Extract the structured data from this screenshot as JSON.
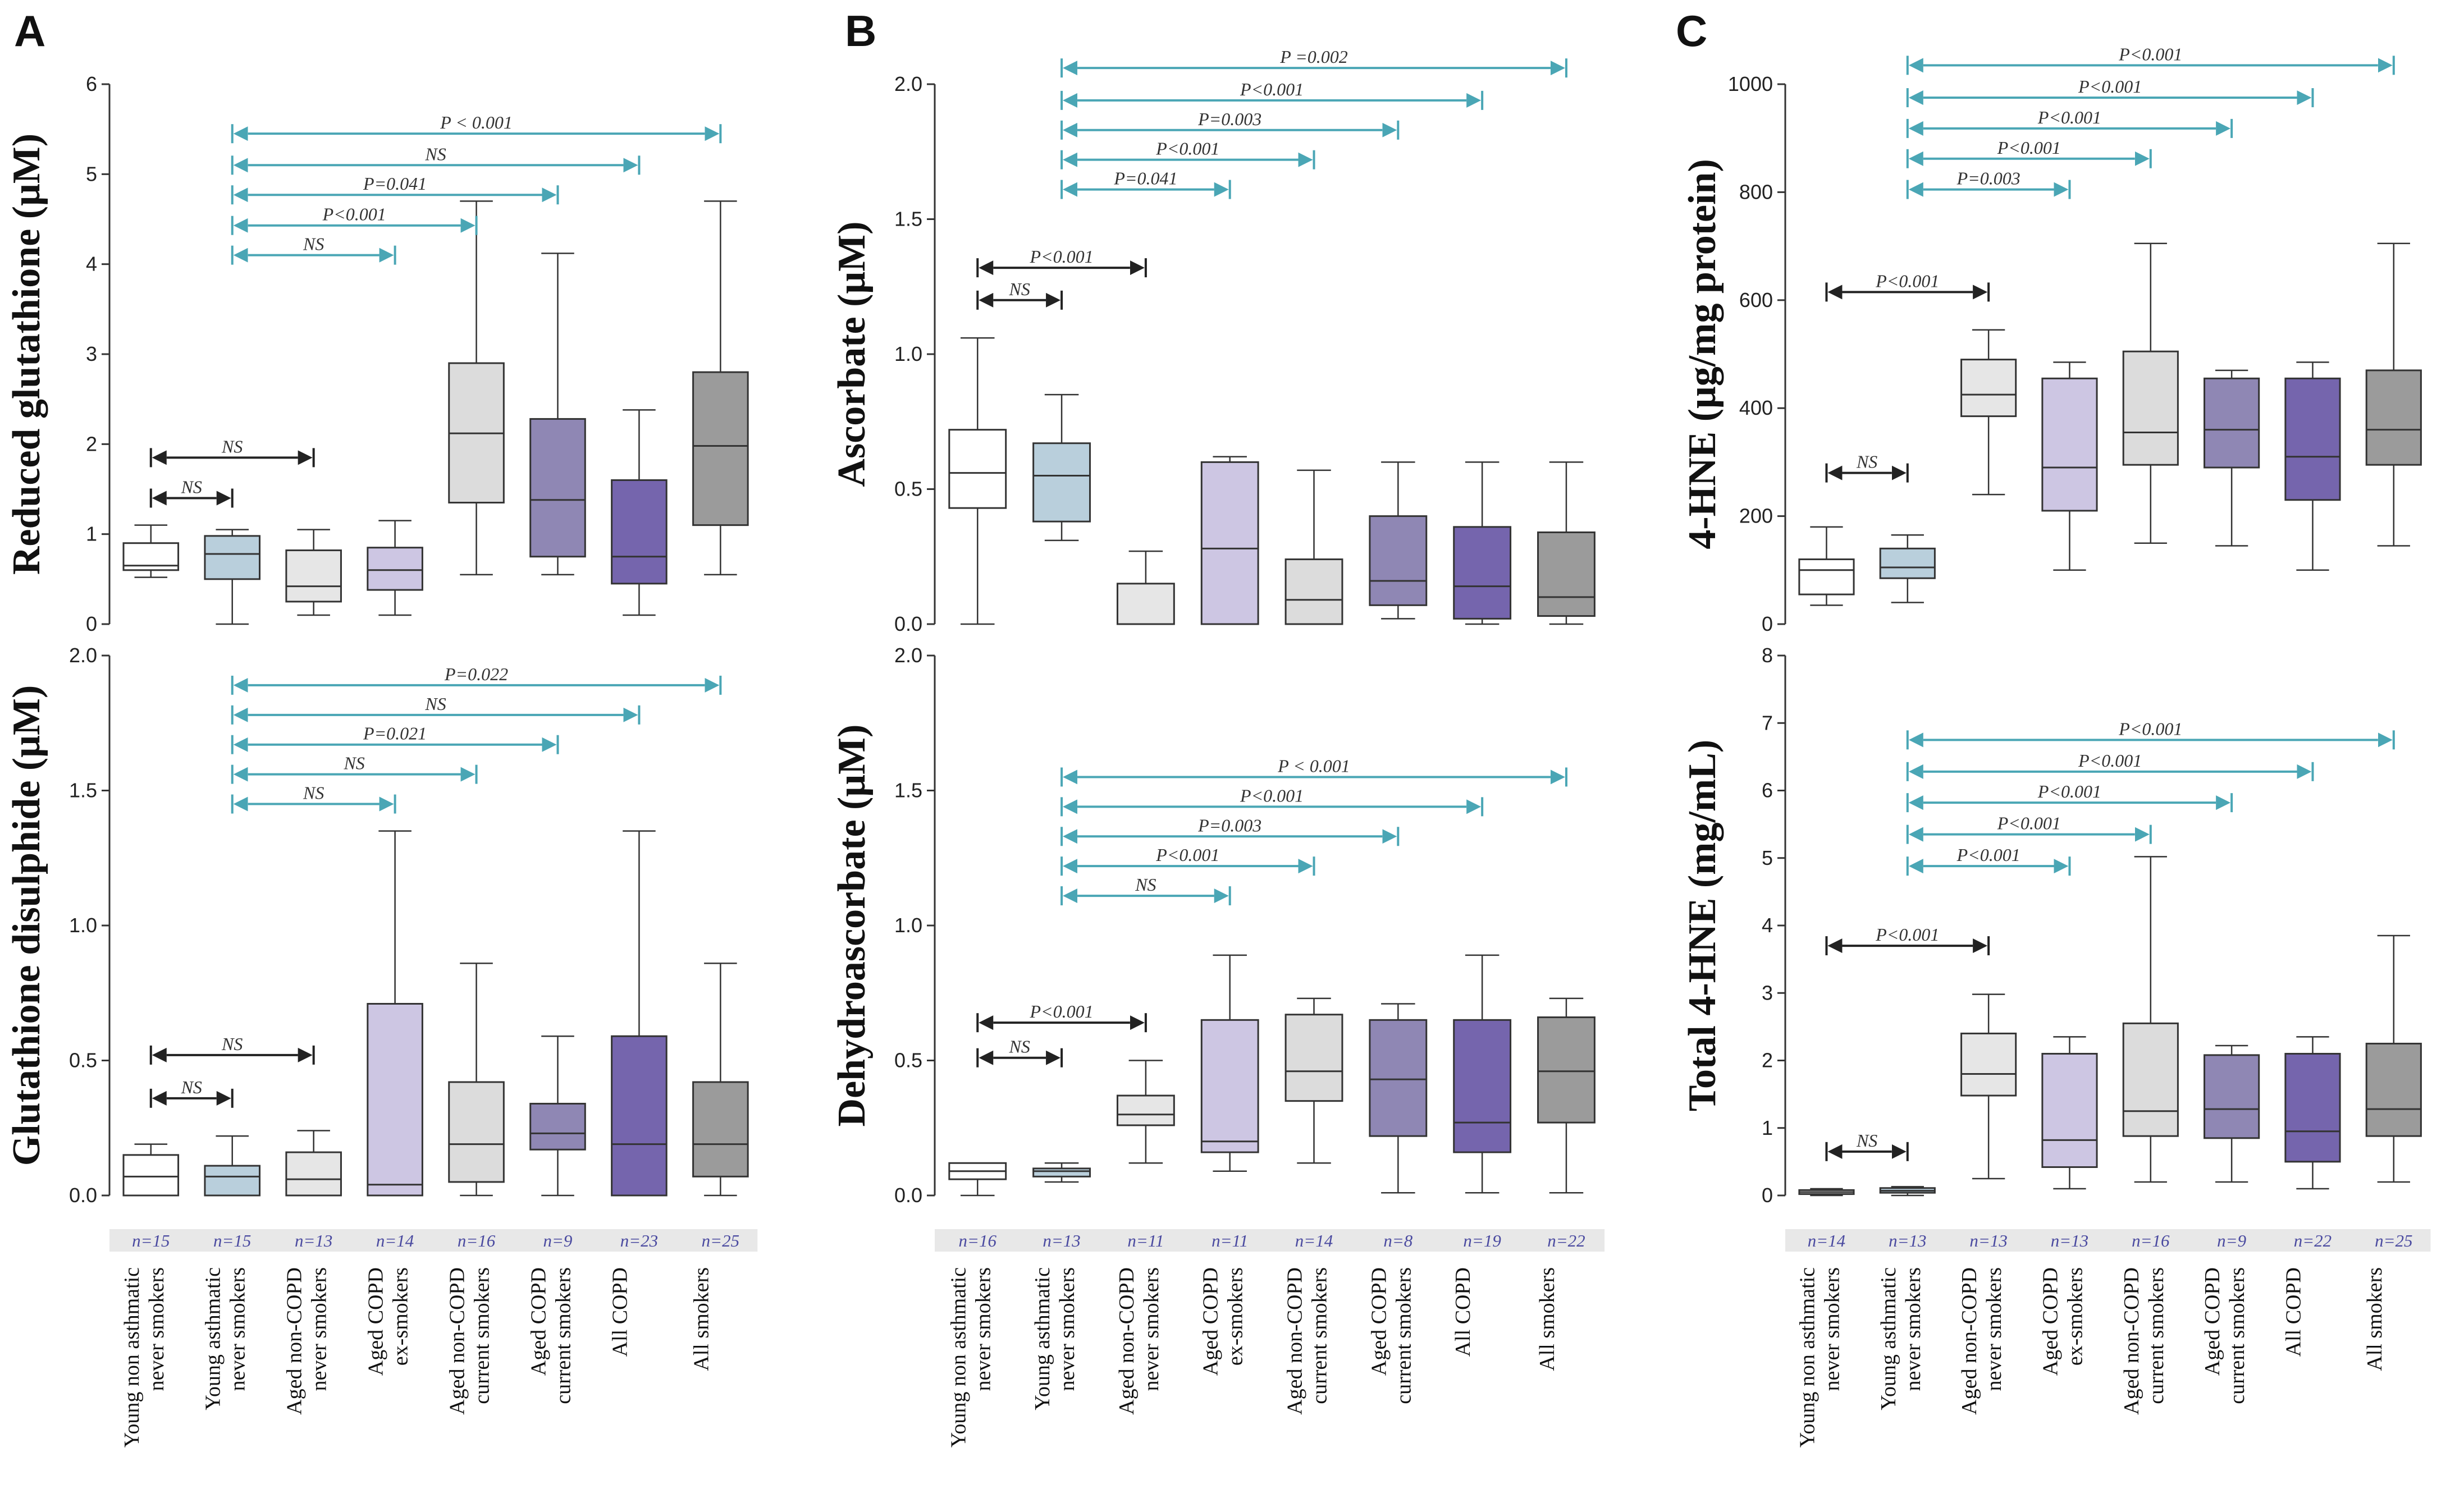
{
  "colors": {
    "teal": "#4aa6b5",
    "black": "#222222",
    "groups": [
      "#ffffff",
      "#b9cfdc",
      "#e6e6e6",
      "#cdc6e3",
      "#dcdcdc",
      "#8f87b4",
      "#7565ad",
      "#9b9b9b"
    ],
    "nband": "#e8e8e8"
  },
  "categories": [
    [
      "Young non asthmatic",
      "never smokers"
    ],
    [
      "Young asthmatic",
      "never smokers"
    ],
    [
      "Aged non-COPD",
      "never smokers"
    ],
    [
      "Aged COPD",
      "ex-smokers"
    ],
    [
      "Aged non-COPD",
      "current smokers"
    ],
    [
      "Aged COPD",
      "current smokers"
    ],
    [
      "All COPD"
    ],
    [
      "All smokers"
    ]
  ],
  "panels": [
    {
      "letter": "A",
      "n": [
        "n=15",
        "n=15",
        "n=13",
        "n=14",
        "n=16",
        "n=9",
        "n=23",
        "n=25"
      ]
    },
    {
      "letter": "B",
      "n": [
        "n=16",
        "n=13",
        "n=11",
        "n=11",
        "n=14",
        "n=8",
        "n=19",
        "n=22"
      ]
    },
    {
      "letter": "C",
      "n": [
        "n=14",
        "n=13",
        "n=13",
        "n=13",
        "n=16",
        "n=9",
        "n=22",
        "n=25"
      ]
    }
  ],
  "chart_data": [
    {
      "type": "box",
      "panel": "A",
      "row": "top",
      "ylabel": "Reduced glutathione (μM)",
      "ylim": [
        0,
        6
      ],
      "ticks": [
        "0",
        "1",
        "2",
        "3",
        "4",
        "5",
        "6"
      ],
      "tickvals": [
        0,
        1,
        2,
        3,
        4,
        5,
        6
      ],
      "boxes": [
        {
          "min": 0.52,
          "q1": 0.6,
          "median": 0.65,
          "q3": 0.9,
          "max": 1.1
        },
        {
          "min": 0.0,
          "q1": 0.5,
          "median": 0.78,
          "q3": 0.98,
          "max": 1.05
        },
        {
          "min": 0.1,
          "q1": 0.25,
          "median": 0.42,
          "q3": 0.82,
          "max": 1.05
        },
        {
          "min": 0.1,
          "q1": 0.38,
          "median": 0.6,
          "q3": 0.85,
          "max": 1.15
        },
        {
          "min": 0.55,
          "q1": 1.35,
          "median": 2.12,
          "q3": 2.9,
          "max": 4.7
        },
        {
          "min": 0.55,
          "q1": 0.75,
          "median": 1.38,
          "q3": 2.28,
          "max": 4.12
        },
        {
          "min": 0.1,
          "q1": 0.45,
          "median": 0.75,
          "q3": 1.6,
          "max": 2.38
        },
        {
          "min": 0.55,
          "q1": 1.1,
          "median": 1.98,
          "q3": 2.8,
          "max": 4.7
        }
      ],
      "comparisons": [
        {
          "from": 0,
          "to": 2,
          "y": 1.85,
          "label": "NS",
          "color": "black"
        },
        {
          "from": 0,
          "to": 1,
          "y": 1.4,
          "label": "NS",
          "color": "black"
        },
        {
          "from": 1,
          "to": 7,
          "y": 5.45,
          "label": "P < 0.001",
          "color": "teal"
        },
        {
          "from": 1,
          "to": 6,
          "y": 5.1,
          "label": "NS",
          "color": "teal"
        },
        {
          "from": 1,
          "to": 5,
          "y": 4.77,
          "label": "P=0.041",
          "color": "teal"
        },
        {
          "from": 1,
          "to": 4,
          "y": 4.43,
          "label": "P<0.001",
          "color": "teal"
        },
        {
          "from": 1,
          "to": 3,
          "y": 4.1,
          "label": "NS",
          "color": "teal"
        }
      ]
    },
    {
      "type": "box",
      "panel": "A",
      "row": "bottom",
      "ylabel": "Glutathione disulphide (μM)",
      "ylim": [
        0,
        2
      ],
      "ticks": [
        "0.0",
        "0.5",
        "1.0",
        "1.5",
        "2.0"
      ],
      "tickvals": [
        0,
        0.5,
        1.0,
        1.5,
        2.0
      ],
      "boxes": [
        {
          "min": 0.0,
          "q1": 0.0,
          "median": 0.07,
          "q3": 0.15,
          "max": 0.19
        },
        {
          "min": 0.0,
          "q1": 0.0,
          "median": 0.07,
          "q3": 0.11,
          "max": 0.22
        },
        {
          "min": 0.0,
          "q1": 0.0,
          "median": 0.06,
          "q3": 0.16,
          "max": 0.24
        },
        {
          "min": 0.0,
          "q1": 0.0,
          "median": 0.04,
          "q3": 0.71,
          "max": 1.35
        },
        {
          "min": 0.0,
          "q1": 0.05,
          "median": 0.19,
          "q3": 0.42,
          "max": 0.86
        },
        {
          "min": 0.0,
          "q1": 0.17,
          "median": 0.23,
          "q3": 0.34,
          "max": 0.59
        },
        {
          "min": 0.0,
          "q1": 0.0,
          "median": 0.19,
          "q3": 0.59,
          "max": 1.35
        },
        {
          "min": 0.0,
          "q1": 0.07,
          "median": 0.19,
          "q3": 0.42,
          "max": 0.86
        }
      ],
      "comparisons": [
        {
          "from": 0,
          "to": 2,
          "y": 0.52,
          "label": "NS",
          "color": "black"
        },
        {
          "from": 0,
          "to": 1,
          "y": 0.36,
          "label": "NS",
          "color": "black"
        },
        {
          "from": 1,
          "to": 7,
          "y": 1.89,
          "label": "P=0.022",
          "color": "teal"
        },
        {
          "from": 1,
          "to": 6,
          "y": 1.78,
          "label": "NS",
          "color": "teal"
        },
        {
          "from": 1,
          "to": 5,
          "y": 1.67,
          "label": "P=0.021",
          "color": "teal"
        },
        {
          "from": 1,
          "to": 4,
          "y": 1.56,
          "label": "NS",
          "color": "teal"
        },
        {
          "from": 1,
          "to": 3,
          "y": 1.45,
          "label": "NS",
          "color": "teal"
        }
      ]
    },
    {
      "type": "box",
      "panel": "B",
      "row": "top",
      "ylabel": "Ascorbate (μM)",
      "ylim": [
        0,
        2
      ],
      "ticks": [
        "0.0",
        "0.5",
        "1.0",
        "1.5",
        "2.0"
      ],
      "tickvals": [
        0,
        0.5,
        1.0,
        1.5,
        2.0
      ],
      "boxes": [
        {
          "min": 0.0,
          "q1": 0.43,
          "median": 0.56,
          "q3": 0.72,
          "max": 1.06
        },
        {
          "min": 0.31,
          "q1": 0.38,
          "median": 0.55,
          "q3": 0.67,
          "max": 0.85
        },
        {
          "min": 0.0,
          "q1": 0.0,
          "median": 0.0,
          "q3": 0.15,
          "max": 0.27
        },
        {
          "min": 0.0,
          "q1": 0.0,
          "median": 0.28,
          "q3": 0.6,
          "max": 0.62
        },
        {
          "min": 0.0,
          "q1": 0.0,
          "median": 0.09,
          "q3": 0.24,
          "max": 0.57
        },
        {
          "min": 0.02,
          "q1": 0.07,
          "median": 0.16,
          "q3": 0.4,
          "max": 0.6
        },
        {
          "min": 0.0,
          "q1": 0.02,
          "median": 0.14,
          "q3": 0.36,
          "max": 0.6
        },
        {
          "min": 0.0,
          "q1": 0.03,
          "median": 0.1,
          "q3": 0.34,
          "max": 0.6
        }
      ],
      "comparisons": [
        {
          "from": 0,
          "to": 2,
          "y": 1.32,
          "label": "P<0.001",
          "color": "black"
        },
        {
          "from": 0,
          "to": 1,
          "y": 1.2,
          "label": "NS",
          "color": "black"
        },
        {
          "from": 1,
          "to": 7,
          "y": 2.06,
          "label": "P =0.002",
          "color": "teal"
        },
        {
          "from": 1,
          "to": 6,
          "y": 1.94,
          "label": "P<0.001",
          "color": "teal"
        },
        {
          "from": 1,
          "to": 5,
          "y": 1.83,
          "label": "P=0.003",
          "color": "teal"
        },
        {
          "from": 1,
          "to": 4,
          "y": 1.72,
          "label": "P<0.001",
          "color": "teal"
        },
        {
          "from": 1,
          "to": 3,
          "y": 1.61,
          "label": "P=0.041",
          "color": "teal"
        }
      ]
    },
    {
      "type": "box",
      "panel": "B",
      "row": "bottom",
      "ylabel": "Dehydroascorbate (μM)",
      "ylim": [
        0,
        2
      ],
      "ticks": [
        "0.0",
        "0.5",
        "1.0",
        "1.5",
        "2.0"
      ],
      "tickvals": [
        0,
        0.5,
        1.0,
        1.5,
        2.0
      ],
      "boxes": [
        {
          "min": 0.0,
          "q1": 0.06,
          "median": 0.09,
          "q3": 0.12,
          "max": 0.12
        },
        {
          "min": 0.05,
          "q1": 0.07,
          "median": 0.09,
          "q3": 0.1,
          "max": 0.12
        },
        {
          "min": 0.12,
          "q1": 0.26,
          "median": 0.3,
          "q3": 0.37,
          "max": 0.5
        },
        {
          "min": 0.09,
          "q1": 0.16,
          "median": 0.2,
          "q3": 0.65,
          "max": 0.89
        },
        {
          "min": 0.12,
          "q1": 0.35,
          "median": 0.46,
          "q3": 0.67,
          "max": 0.73
        },
        {
          "min": 0.01,
          "q1": 0.22,
          "median": 0.43,
          "q3": 0.65,
          "max": 0.71
        },
        {
          "min": 0.01,
          "q1": 0.16,
          "median": 0.27,
          "q3": 0.65,
          "max": 0.89
        },
        {
          "min": 0.01,
          "q1": 0.27,
          "median": 0.46,
          "q3": 0.66,
          "max": 0.73
        }
      ],
      "comparisons": [
        {
          "from": 0,
          "to": 2,
          "y": 0.64,
          "label": "P<0.001",
          "color": "black"
        },
        {
          "from": 0,
          "to": 1,
          "y": 0.51,
          "label": "NS",
          "color": "black"
        },
        {
          "from": 1,
          "to": 7,
          "y": 1.55,
          "label": "P < 0.001",
          "color": "teal"
        },
        {
          "from": 1,
          "to": 6,
          "y": 1.44,
          "label": "P<0.001",
          "color": "teal"
        },
        {
          "from": 1,
          "to": 5,
          "y": 1.33,
          "label": "P=0.003",
          "color": "teal"
        },
        {
          "from": 1,
          "to": 4,
          "y": 1.22,
          "label": "P<0.001",
          "color": "teal"
        },
        {
          "from": 1,
          "to": 3,
          "y": 1.11,
          "label": "NS",
          "color": "teal"
        }
      ]
    },
    {
      "type": "box",
      "panel": "C",
      "row": "top",
      "ylabel": "4-HNE (μg/mg protein)",
      "ylim": [
        0,
        1000
      ],
      "ticks": [
        "0",
        "200",
        "400",
        "600",
        "800",
        "1000"
      ],
      "tickvals": [
        0,
        200,
        400,
        600,
        800,
        1000
      ],
      "boxes": [
        {
          "min": 35,
          "q1": 55,
          "median": 100,
          "q3": 120,
          "max": 180
        },
        {
          "min": 40,
          "q1": 85,
          "median": 105,
          "q3": 140,
          "max": 165
        },
        {
          "min": 240,
          "q1": 385,
          "median": 425,
          "q3": 490,
          "max": 545
        },
        {
          "min": 100,
          "q1": 210,
          "median": 290,
          "q3": 455,
          "max": 485
        },
        {
          "min": 150,
          "q1": 295,
          "median": 355,
          "q3": 505,
          "max": 705
        },
        {
          "min": 145,
          "q1": 290,
          "median": 360,
          "q3": 455,
          "max": 470
        },
        {
          "min": 100,
          "q1": 230,
          "median": 310,
          "q3": 455,
          "max": 485
        },
        {
          "min": 145,
          "q1": 295,
          "median": 360,
          "q3": 470,
          "max": 705
        }
      ],
      "comparisons": [
        {
          "from": 0,
          "to": 2,
          "y": 615,
          "label": "P<0.001",
          "color": "black"
        },
        {
          "from": 0,
          "to": 1,
          "y": 280,
          "label": "NS",
          "color": "black"
        },
        {
          "from": 1,
          "to": 7,
          "y": 1035,
          "label": "P<0.001",
          "color": "teal"
        },
        {
          "from": 1,
          "to": 6,
          "y": 975,
          "label": "P<0.001",
          "color": "teal"
        },
        {
          "from": 1,
          "to": 5,
          "y": 918,
          "label": "P<0.001",
          "color": "teal"
        },
        {
          "from": 1,
          "to": 4,
          "y": 862,
          "label": "P<0.001",
          "color": "teal"
        },
        {
          "from": 1,
          "to": 3,
          "y": 805,
          "label": "P=0.003",
          "color": "teal"
        }
      ]
    },
    {
      "type": "box",
      "panel": "C",
      "row": "bottom",
      "ylabel": "Total 4-HNE (mg/mL)",
      "ylim": [
        0,
        8
      ],
      "ticks": [
        "0",
        "1",
        "2",
        "3",
        "4",
        "5",
        "6",
        "7",
        "8"
      ],
      "tickvals": [
        0,
        1,
        2,
        3,
        4,
        5,
        6,
        7,
        8
      ],
      "boxes": [
        {
          "min": 0.0,
          "q1": 0.02,
          "median": 0.05,
          "q3": 0.08,
          "max": 0.1
        },
        {
          "min": 0.0,
          "q1": 0.04,
          "median": 0.07,
          "q3": 0.11,
          "max": 0.13
        },
        {
          "min": 0.25,
          "q1": 1.48,
          "median": 1.8,
          "q3": 2.4,
          "max": 2.98
        },
        {
          "min": 0.1,
          "q1": 0.42,
          "median": 0.82,
          "q3": 2.1,
          "max": 2.35
        },
        {
          "min": 0.2,
          "q1": 0.88,
          "median": 1.25,
          "q3": 2.55,
          "max": 5.02
        },
        {
          "min": 0.2,
          "q1": 0.85,
          "median": 1.28,
          "q3": 2.08,
          "max": 2.22
        },
        {
          "min": 0.1,
          "q1": 0.5,
          "median": 0.95,
          "q3": 2.1,
          "max": 2.35
        },
        {
          "min": 0.2,
          "q1": 0.88,
          "median": 1.28,
          "q3": 2.25,
          "max": 3.85
        }
      ],
      "comparisons": [
        {
          "from": 0,
          "to": 2,
          "y": 3.7,
          "label": "P<0.001",
          "color": "black"
        },
        {
          "from": 0,
          "to": 1,
          "y": 0.65,
          "label": "NS",
          "color": "black"
        },
        {
          "from": 1,
          "to": 7,
          "y": 6.75,
          "label": "P<0.001",
          "color": "teal"
        },
        {
          "from": 1,
          "to": 6,
          "y": 6.28,
          "label": "P<0.001",
          "color": "teal"
        },
        {
          "from": 1,
          "to": 5,
          "y": 5.82,
          "label": "P<0.001",
          "color": "teal"
        },
        {
          "from": 1,
          "to": 4,
          "y": 5.35,
          "label": "P<0.001",
          "color": "teal"
        },
        {
          "from": 1,
          "to": 3,
          "y": 4.88,
          "label": "P<0.001",
          "color": "teal"
        }
      ]
    }
  ]
}
